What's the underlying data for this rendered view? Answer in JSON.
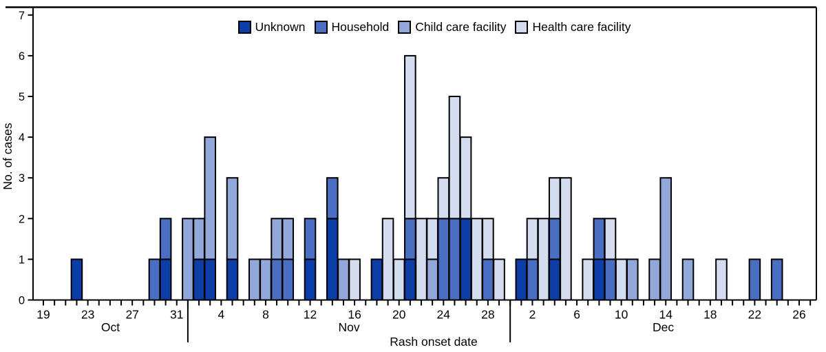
{
  "chart_data": {
    "type": "bar",
    "stacked": true,
    "title": "",
    "ylabel": "No. of cases",
    "xlabel": "Rash onset date",
    "ylim": [
      0,
      7
    ],
    "yticks": [
      "0",
      "1",
      "2",
      "3",
      "4",
      "5",
      "6",
      "7"
    ],
    "grid": false,
    "legend_position": "top-center",
    "legend": [
      {
        "label": "Unknown",
        "color": "#0d3da6"
      },
      {
        "label": "Household",
        "color": "#4a6fc2"
      },
      {
        "label": "Child care facility",
        "color": "#93a8da"
      },
      {
        "label": "Health care facility",
        "color": "#d4dcf0"
      }
    ],
    "series_order": [
      "Unknown",
      "Household",
      "Child care facility",
      "Health care facility"
    ],
    "colors": {
      "Unknown": "#0d3da6",
      "Household": "#4a6fc2",
      "Child care facility": "#93a8da",
      "Health care facility": "#d4dcf0"
    },
    "x_axis": {
      "start_date": "Oct 19",
      "end_date": "Dec 26",
      "tick_every_days": 1,
      "label_every_days": 4,
      "tick_labels": [
        "19",
        "23",
        "27",
        "31",
        "4",
        "8",
        "12",
        "16",
        "20",
        "24",
        "28",
        "2",
        "6",
        "10",
        "14",
        "18",
        "22",
        "26"
      ],
      "month_labels": [
        "Oct",
        "Nov",
        "Dec"
      ]
    },
    "bars": [
      {
        "date": "Oct 22",
        "Unknown": 1
      },
      {
        "date": "Oct 29",
        "Household": 1
      },
      {
        "date": "Oct 30",
        "Unknown": 1,
        "Household": 1
      },
      {
        "date": "Nov 1",
        "Child care facility": 2
      },
      {
        "date": "Nov 2",
        "Unknown": 1,
        "Child care facility": 1
      },
      {
        "date": "Nov 3",
        "Unknown": 1,
        "Child care facility": 3
      },
      {
        "date": "Nov 5",
        "Unknown": 1,
        "Child care facility": 2
      },
      {
        "date": "Nov 7",
        "Child care facility": 1
      },
      {
        "date": "Nov 8",
        "Child care facility": 1
      },
      {
        "date": "Nov 9",
        "Household": 1,
        "Child care facility": 1
      },
      {
        "date": "Nov 10",
        "Household": 1,
        "Child care facility": 1
      },
      {
        "date": "Nov 12",
        "Unknown": 1,
        "Household": 1
      },
      {
        "date": "Nov 14",
        "Unknown": 2,
        "Household": 1
      },
      {
        "date": "Nov 15",
        "Child care facility": 1
      },
      {
        "date": "Nov 16",
        "Health care facility": 1
      },
      {
        "date": "Nov 18",
        "Unknown": 1
      },
      {
        "date": "Nov 19",
        "Health care facility": 2
      },
      {
        "date": "Nov 20",
        "Health care facility": 1
      },
      {
        "date": "Nov 21",
        "Unknown": 1,
        "Household": 1,
        "Health care facility": 4
      },
      {
        "date": "Nov 22",
        "Health care facility": 2
      },
      {
        "date": "Nov 23",
        "Child care facility": 1,
        "Health care facility": 1
      },
      {
        "date": "Nov 24",
        "Household": 2,
        "Health care facility": 1
      },
      {
        "date": "Nov 25",
        "Household": 2,
        "Health care facility": 3
      },
      {
        "date": "Nov 26",
        "Unknown": 2,
        "Health care facility": 2
      },
      {
        "date": "Nov 27",
        "Health care facility": 2
      },
      {
        "date": "Nov 28",
        "Household": 1,
        "Health care facility": 1
      },
      {
        "date": "Nov 29",
        "Health care facility": 1
      },
      {
        "date": "Dec 1",
        "Unknown": 1
      },
      {
        "date": "Dec 2",
        "Household": 1,
        "Health care facility": 1
      },
      {
        "date": "Dec 3",
        "Health care facility": 2
      },
      {
        "date": "Dec 4",
        "Unknown": 1,
        "Household": 1,
        "Health care facility": 1
      },
      {
        "date": "Dec 5",
        "Health care facility": 3
      },
      {
        "date": "Dec 7",
        "Health care facility": 1
      },
      {
        "date": "Dec 8",
        "Unknown": 1,
        "Household": 1
      },
      {
        "date": "Dec 9",
        "Household": 1,
        "Health care facility": 1
      },
      {
        "date": "Dec 10",
        "Health care facility": 1
      },
      {
        "date": "Dec 11",
        "Child care facility": 1
      },
      {
        "date": "Dec 13",
        "Child care facility": 1
      },
      {
        "date": "Dec 14",
        "Child care facility": 3
      },
      {
        "date": "Dec 16",
        "Child care facility": 1
      },
      {
        "date": "Dec 19",
        "Health care facility": 1
      },
      {
        "date": "Dec 22",
        "Household": 1
      },
      {
        "date": "Dec 24",
        "Household": 1
      }
    ]
  }
}
